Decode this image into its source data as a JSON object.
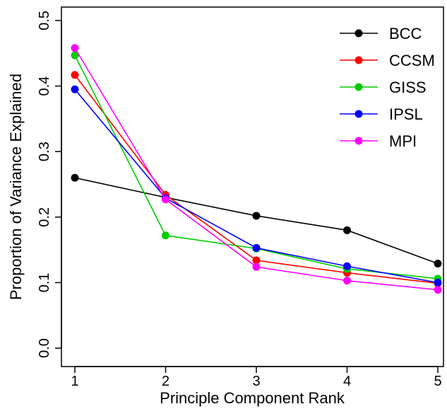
{
  "chart_data": {
    "type": "line",
    "xlabel": "Principle Component Rank",
    "ylabel": "Proportion of Variance Explained",
    "x": [
      1,
      2,
      3,
      4,
      5
    ],
    "xlim": [
      1,
      5
    ],
    "ylim": [
      0.0,
      0.5
    ],
    "xticks": [
      "1",
      "2",
      "3",
      "4",
      "5"
    ],
    "yticks": [
      "0.0",
      "0.1",
      "0.2",
      "0.3",
      "0.4",
      "0.5"
    ],
    "yticks_values": [
      0.0,
      0.1,
      0.2,
      0.3,
      0.4,
      0.5
    ],
    "grid": false,
    "legend_position": "top-right",
    "series": [
      {
        "name": "BCC",
        "color": "#000000",
        "values": [
          0.26,
          0.23,
          0.202,
          0.18,
          0.129
        ]
      },
      {
        "name": "CCSM",
        "color": "#ff0000",
        "values": [
          0.417,
          0.234,
          0.134,
          0.115,
          0.099
        ]
      },
      {
        "name": "GISS",
        "color": "#00cc00",
        "values": [
          0.447,
          0.172,
          0.152,
          0.121,
          0.106
        ]
      },
      {
        "name": "IPSL",
        "color": "#0000ff",
        "values": [
          0.395,
          0.229,
          0.153,
          0.125,
          0.1
        ]
      },
      {
        "name": "MPI",
        "color": "#ff00ff",
        "values": [
          0.458,
          0.227,
          0.124,
          0.103,
          0.089
        ]
      }
    ]
  }
}
